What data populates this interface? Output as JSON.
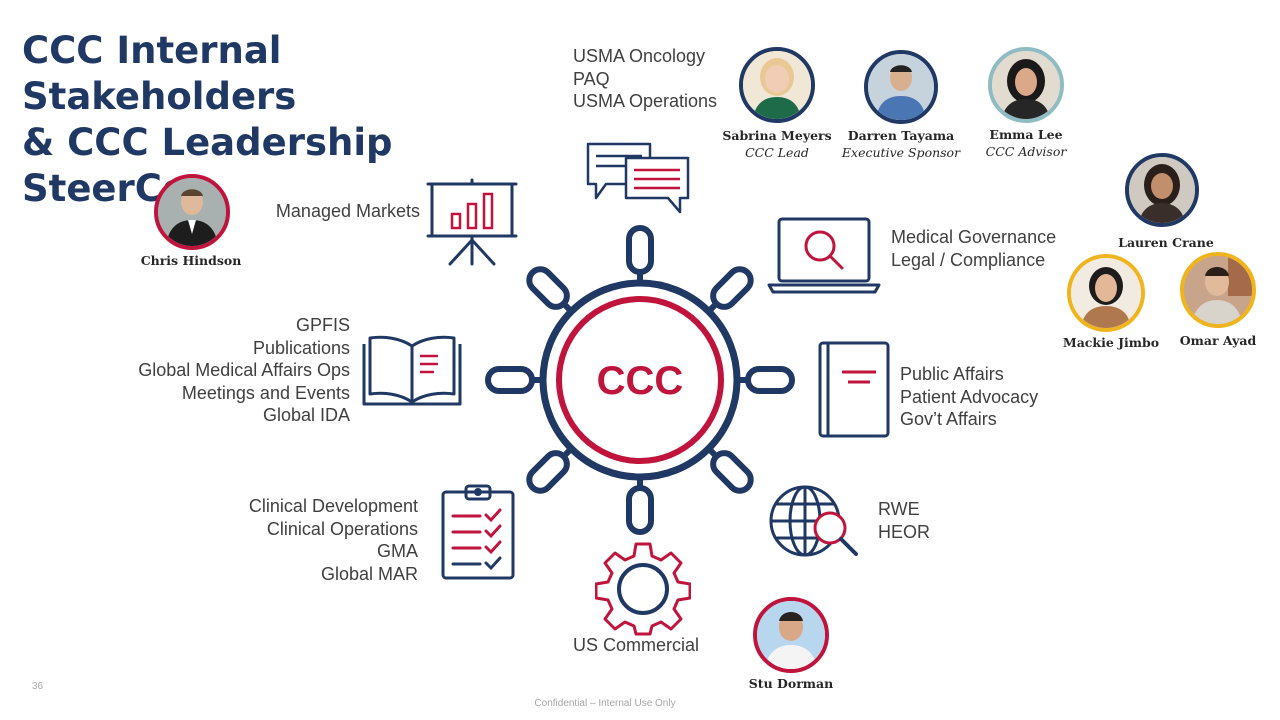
{
  "title_line1": "CCC Internal Stakeholders",
  "title_line2": "& CCC Leadership SteerCo",
  "center_label": "CCC",
  "colors": {
    "navy": "#1f3864",
    "red": "#c0143c",
    "text": "#404040"
  },
  "groups": {
    "usma": [
      "USMA Oncology",
      "PAQ",
      "USMA Operations"
    ],
    "managed_markets": [
      "Managed Markets"
    ],
    "medical_governance": [
      "Medical Governance",
      "Legal / Compliance"
    ],
    "gpfis": [
      "GPFIS",
      "Publications",
      "Global Medical Affairs Ops",
      "Meetings and Events",
      "Global IDA"
    ],
    "public_affairs": [
      "Public Affairs",
      "Patient Advocacy",
      "Gov’t Affairs"
    ],
    "clinical": [
      "Clinical Development",
      "Clinical Operations",
      "GMA",
      "Global MAR"
    ],
    "rwe": [
      "RWE",
      "HEOR"
    ],
    "commercial": [
      "US Commercial"
    ]
  },
  "people": {
    "sabrina": {
      "name": "Sabrina Meyers",
      "role": "CCC Lead"
    },
    "darren": {
      "name": "Darren Tayama",
      "role": "Executive Sponsor"
    },
    "emma": {
      "name": "Emma Lee",
      "role": "CCC Advisor"
    },
    "chris": {
      "name": "Chris Hindson"
    },
    "lauren": {
      "name": "Lauren Crane"
    },
    "mackie": {
      "name": "Mackie Jimbo"
    },
    "omar": {
      "name": "Omar Ayad"
    },
    "stu": {
      "name": "Stu Dorman"
    }
  },
  "icons": {
    "usma": "speech-bubbles-icon",
    "managed_markets": "presentation-chart-icon",
    "medical_governance": "laptop-search-icon",
    "gpfis": "open-book-icon",
    "public_affairs": "document-icon",
    "clinical": "checklist-clipboard-icon",
    "rwe": "globe-search-icon",
    "commercial": "gear-icon",
    "center": "ship-wheel-icon"
  },
  "slide_number": "36",
  "footer": "Confidential – Internal Use Only"
}
